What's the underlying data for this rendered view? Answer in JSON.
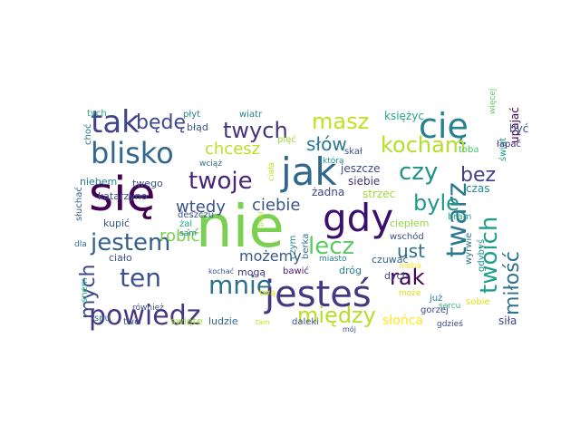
{
  "figure": {
    "type": "word-cloud",
    "background": "#ffffff",
    "colormap": "viridis"
  },
  "words": [
    {
      "text": "się",
      "color": "#440154"
    },
    {
      "text": "nie",
      "color": "#7ad151"
    },
    {
      "text": "gdy",
      "color": "#3b0f70"
    },
    {
      "text": "jak",
      "color": "#31688e"
    },
    {
      "text": "jesteś",
      "color": "#453781"
    },
    {
      "text": "cię",
      "color": "#26828e"
    },
    {
      "text": "tak",
      "color": "#414487"
    },
    {
      "text": "blisko",
      "color": "#31688e"
    },
    {
      "text": "kocham",
      "color": "#b5de2b"
    },
    {
      "text": "twarz",
      "color": "#2a788e"
    },
    {
      "text": "twoich",
      "color": "#1f9e89"
    },
    {
      "text": "miłość",
      "color": "#2c728e"
    },
    {
      "text": "powiedz",
      "color": "#453781"
    },
    {
      "text": "jestem",
      "color": "#35608d"
    },
    {
      "text": "mnie",
      "color": "#2d708e"
    },
    {
      "text": "ten",
      "color": "#3b528b"
    },
    {
      "text": "twoje",
      "color": "#482677"
    },
    {
      "text": "twych",
      "color": "#46337e"
    },
    {
      "text": "byle",
      "color": "#1f988b"
    },
    {
      "text": "między",
      "color": "#b8de29"
    },
    {
      "text": "lecz",
      "color": "#5ec962"
    },
    {
      "text": "rak",
      "color": "#440154"
    },
    {
      "text": "masz",
      "color": "#c2df23"
    },
    {
      "text": "czy",
      "color": "#21918c"
    },
    {
      "text": "bez",
      "color": "#433e85"
    },
    {
      "text": "będę",
      "color": "#3e4989"
    },
    {
      "text": "mych",
      "color": "#3e4989"
    },
    {
      "text": "słów",
      "color": "#2a788e"
    },
    {
      "text": "chcesz",
      "color": "#bddf26"
    },
    {
      "text": "wtedy",
      "color": "#3b528b"
    },
    {
      "text": "ciebie",
      "color": "#3a548c"
    },
    {
      "text": "ust",
      "color": "#2e6e8e"
    },
    {
      "text": "robić",
      "color": "#7ad151"
    },
    {
      "text": "możemy",
      "color": "#38598c"
    },
    {
      "text": "słońca",
      "color": "#fde725"
    },
    {
      "text": "księżyc",
      "color": "#22a884"
    },
    {
      "text": "jeszcze",
      "color": "#3e4a89"
    },
    {
      "text": "siebie",
      "color": "#46317e"
    },
    {
      "text": "żadna",
      "color": "#3f4788"
    },
    {
      "text": "strzec",
      "color": "#9fda3a"
    },
    {
      "text": "czas",
      "color": "#228c8d"
    },
    {
      "text": "katarzyno",
      "color": "#3c508b"
    },
    {
      "text": "niebem",
      "color": "#27808e"
    },
    {
      "text": "twego",
      "color": "#3d4d8a"
    },
    {
      "text": "ciepłem",
      "color": "#90d743"
    },
    {
      "text": "wschód",
      "color": "#3d4e8a"
    },
    {
      "text": "kupić",
      "color": "#38588c"
    },
    {
      "text": "ciało",
      "color": "#3b528b"
    },
    {
      "text": "mogą",
      "color": "#46327e"
    },
    {
      "text": "czuwać",
      "color": "#34618d"
    },
    {
      "text": "bawić",
      "color": "#48196b"
    },
    {
      "text": "dróg",
      "color": "#287d8e"
    },
    {
      "text": "dych",
      "color": "#3e4989"
    },
    {
      "text": "twą",
      "color": "#dde318"
    },
    {
      "text": "twe",
      "color": "#3b528b"
    },
    {
      "text": "święte",
      "color": "#a8db34"
    },
    {
      "text": "ludzie",
      "color": "#31688e"
    },
    {
      "text": "daleki",
      "color": "#3a538b"
    },
    {
      "text": "siła",
      "color": "#414487"
    },
    {
      "text": "berka",
      "color": "#2c728e"
    },
    {
      "text": "czym",
      "color": "#26828e"
    },
    {
      "text": "bram",
      "color": "#1fa287"
    },
    {
      "text": "wyrwie",
      "color": "#2a788e"
    },
    {
      "text": "gdybyś",
      "color": "#21918c"
    },
    {
      "text": "świat",
      "color": "#1e9b8a"
    },
    {
      "text": "upajać",
      "color": "#440154"
    },
    {
      "text": "być",
      "color": "#3b528b"
    },
    {
      "text": "łapać",
      "color": "#46327e"
    },
    {
      "text": "toba",
      "color": "#4ac16d"
    },
    {
      "text": "więcej",
      "color": "#63cb5f"
    },
    {
      "text": "skał",
      "color": "#3b528b"
    },
    {
      "text": "która",
      "color": "#21918c"
    },
    {
      "text": "wiatr",
      "color": "#25858e"
    },
    {
      "text": "płyt",
      "color": "#26828e"
    },
    {
      "text": "tych",
      "color": "#22a884"
    },
    {
      "text": "choć",
      "color": "#2a788e"
    },
    {
      "text": "błąd",
      "color": "#3b528b"
    },
    {
      "text": "pięć",
      "color": "#a2da37"
    },
    {
      "text": "wciąż",
      "color": "#2d708e"
    },
    {
      "text": "ciała",
      "color": "#c8e020"
    },
    {
      "text": "deszczu",
      "color": "#3b528b"
    },
    {
      "text": "żal",
      "color": "#20a386"
    },
    {
      "text": "sam",
      "color": "#26828e"
    },
    {
      "text": "dla",
      "color": "#2e6e8e"
    },
    {
      "text": "słuchać",
      "color": "#33638d"
    },
    {
      "text": "kochać",
      "color": "#3b528b"
    },
    {
      "text": "snem",
      "color": "#22a884"
    },
    {
      "text": "również",
      "color": "#3b528b"
    },
    {
      "text": "snu",
      "color": "#2c728e"
    },
    {
      "text": "tam",
      "color": "#c8e020"
    },
    {
      "text": "miasto",
      "color": "#26828e"
    },
    {
      "text": "nieba",
      "color": "#fde725"
    },
    {
      "text": "może",
      "color": "#dde318"
    },
    {
      "text": "już",
      "color": "#2a788e"
    },
    {
      "text": "sercu",
      "color": "#35b779"
    },
    {
      "text": "mój",
      "color": "#3b528b"
    },
    {
      "text": "gdzieś",
      "color": "#3e4989"
    },
    {
      "text": "gorzej",
      "color": "#3e4989"
    },
    {
      "text": "sobie",
      "color": "#d8e219"
    },
    {
      "text": "poki",
      "color": "#b5de2b"
    }
  ]
}
